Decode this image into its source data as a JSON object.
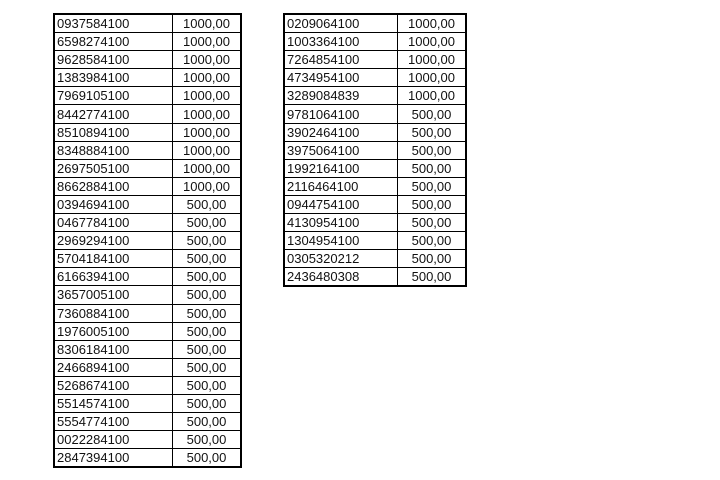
{
  "tables": [
    {
      "rows": [
        {
          "account": "0937584100",
          "amount": "1000,00"
        },
        {
          "account": "6598274100",
          "amount": "1000,00"
        },
        {
          "account": "9628584100",
          "amount": "1000,00"
        },
        {
          "account": "1383984100",
          "amount": "1000,00"
        },
        {
          "account": "7969105100",
          "amount": "1000,00"
        },
        {
          "account": "8442774100",
          "amount": "1000,00"
        },
        {
          "account": "8510894100",
          "amount": "1000,00"
        },
        {
          "account": "8348884100",
          "amount": "1000,00"
        },
        {
          "account": "2697505100",
          "amount": "1000,00"
        },
        {
          "account": "8662884100",
          "amount": "1000,00"
        },
        {
          "account": "0394694100",
          "amount": "500,00"
        },
        {
          "account": "0467784100",
          "amount": "500,00"
        },
        {
          "account": "2969294100",
          "amount": "500,00"
        },
        {
          "account": "5704184100",
          "amount": "500,00"
        },
        {
          "account": "6166394100",
          "amount": "500,00"
        },
        {
          "account": "3657005100",
          "amount": "500,00"
        },
        {
          "account": "7360884100",
          "amount": "500,00"
        },
        {
          "account": "1976005100",
          "amount": "500,00"
        },
        {
          "account": "8306184100",
          "amount": "500,00"
        },
        {
          "account": "2466894100",
          "amount": "500,00"
        },
        {
          "account": "5268674100",
          "amount": "500,00"
        },
        {
          "account": "5514574100",
          "amount": "500,00"
        },
        {
          "account": "5554774100",
          "amount": "500,00"
        },
        {
          "account": "0022284100",
          "amount": "500,00"
        },
        {
          "account": "2847394100",
          "amount": "500,00"
        }
      ]
    },
    {
      "rows": [
        {
          "account": "0209064100",
          "amount": "1000,00"
        },
        {
          "account": "1003364100",
          "amount": "1000,00"
        },
        {
          "account": "7264854100",
          "amount": "1000,00"
        },
        {
          "account": "4734954100",
          "amount": "1000,00"
        },
        {
          "account": "3289084839",
          "amount": "1000,00"
        },
        {
          "account": "9781064100",
          "amount": "500,00"
        },
        {
          "account": "3902464100",
          "amount": "500,00"
        },
        {
          "account": "3975064100",
          "amount": "500,00"
        },
        {
          "account": "1992164100",
          "amount": "500,00"
        },
        {
          "account": "2116464100",
          "amount": "500,00"
        },
        {
          "account": "0944754100",
          "amount": "500,00"
        },
        {
          "account": "4130954100",
          "amount": "500,00"
        },
        {
          "account": "1304954100",
          "amount": "500,00"
        },
        {
          "account": "0305320212",
          "amount": "500,00"
        },
        {
          "account": "2436480308",
          "amount": "500,00"
        }
      ]
    }
  ]
}
